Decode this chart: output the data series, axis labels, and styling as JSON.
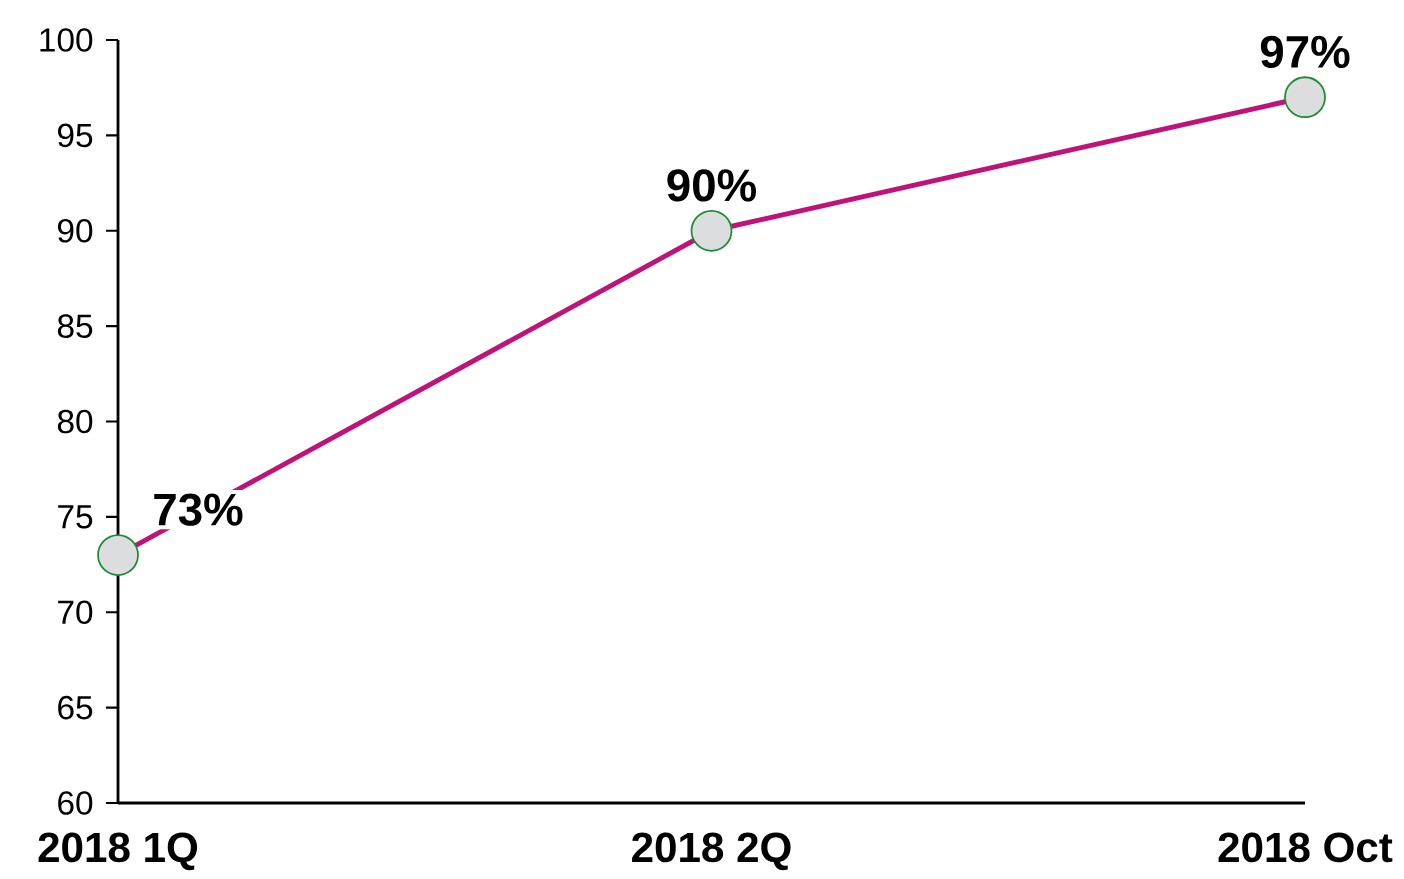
{
  "chart_data": {
    "type": "line",
    "categories": [
      "2018 1Q",
      "2018 2Q",
      "2018 Oct"
    ],
    "values": [
      73,
      90,
      97
    ],
    "value_labels": [
      "73%",
      "90%",
      "97%"
    ],
    "color": "#c0137a",
    "marker": "circle",
    "line_style": "solid",
    "ylim": [
      60,
      100
    ],
    "yticks": [
      60,
      65,
      70,
      75,
      80,
      85,
      90,
      95,
      100
    ],
    "grid": false
  }
}
